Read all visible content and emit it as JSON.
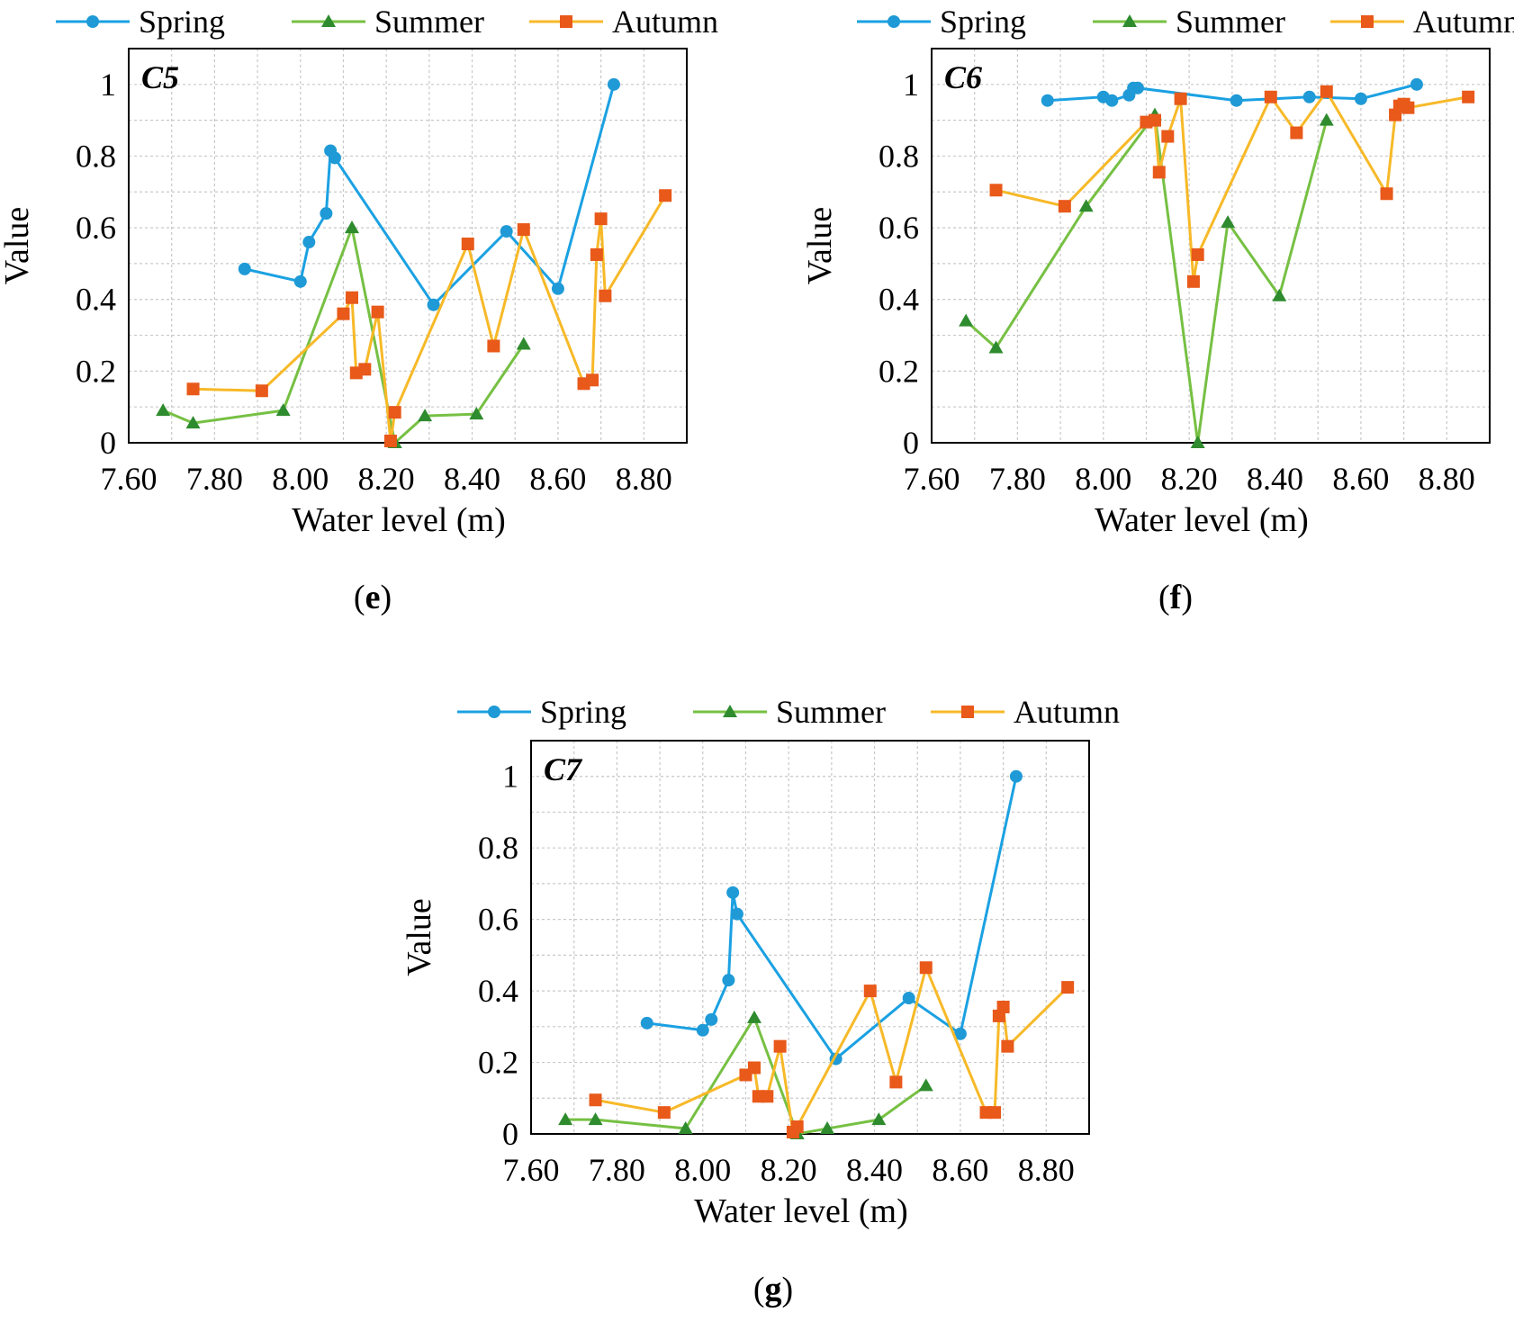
{
  "figure": {
    "legend_labels": [
      "Spring",
      "Summer",
      "Autumn"
    ],
    "colors": {
      "spring_line": "#1ba1e2",
      "spring_marker": "#1f9ad6",
      "summer_line": "#76c043",
      "summer_marker": "#2e8b2e",
      "autumn_line": "#f7b928",
      "autumn_marker": "#e8591a",
      "grid": "#c8c8c8",
      "axis": "#000000"
    },
    "icons": {
      "spring": "circle-marker-icon",
      "summer": "triangle-marker-icon",
      "autumn": "square-marker-icon"
    }
  },
  "chart_data": [
    {
      "type": "line",
      "panel_label": "e",
      "title": "C5",
      "xlabel": "Water level (m)",
      "ylabel": "Value",
      "xlim": [
        7.6,
        8.9
      ],
      "ylim": [
        0,
        1.1
      ],
      "xticks": [
        "7.60",
        "7.80",
        "8.00",
        "8.20",
        "8.40",
        "8.60",
        "8.80"
      ],
      "yticks": [
        "0",
        "0.2",
        "0.4",
        "0.6",
        "0.8",
        "1"
      ],
      "legend": "top",
      "grid": true,
      "series": [
        {
          "name": "Spring",
          "x": [
            7.87,
            8.0,
            8.02,
            8.06,
            8.07,
            8.08,
            8.31,
            8.48,
            8.6,
            8.73
          ],
          "y": [
            0.485,
            0.45,
            0.56,
            0.64,
            0.815,
            0.795,
            0.385,
            0.59,
            0.43,
            1.0
          ]
        },
        {
          "name": "Summer",
          "x": [
            7.68,
            7.75,
            7.96,
            8.12,
            8.22,
            8.29,
            8.41,
            8.52
          ],
          "y": [
            0.09,
            0.055,
            0.09,
            0.6,
            0.0,
            0.075,
            0.08,
            0.275
          ]
        },
        {
          "name": "Autumn",
          "x": [
            7.75,
            7.91,
            8.1,
            8.12,
            8.13,
            8.15,
            8.18,
            8.21,
            8.22,
            8.39,
            8.45,
            8.52,
            8.66,
            8.68,
            8.69,
            8.7,
            8.71,
            8.85
          ],
          "y": [
            0.15,
            0.145,
            0.36,
            0.405,
            0.195,
            0.205,
            0.365,
            0.005,
            0.085,
            0.555,
            0.27,
            0.595,
            0.165,
            0.175,
            0.525,
            0.625,
            0.41,
            0.69
          ]
        }
      ]
    },
    {
      "type": "line",
      "panel_label": "f",
      "title": "C6",
      "xlabel": "Water level (m)",
      "ylabel": "Value",
      "xlim": [
        7.6,
        8.9
      ],
      "ylim": [
        0,
        1.1
      ],
      "xticks": [
        "7.60",
        "7.80",
        "8.00",
        "8.20",
        "8.40",
        "8.60",
        "8.80"
      ],
      "yticks": [
        "0",
        "0.2",
        "0.4",
        "0.6",
        "0.8",
        "1"
      ],
      "legend": "top",
      "grid": true,
      "series": [
        {
          "name": "Spring",
          "x": [
            7.87,
            8.0,
            8.02,
            8.06,
            8.07,
            8.08,
            8.31,
            8.48,
            8.6,
            8.73
          ],
          "y": [
            0.955,
            0.965,
            0.955,
            0.97,
            0.99,
            0.99,
            0.955,
            0.965,
            0.96,
            1.0
          ]
        },
        {
          "name": "Summer",
          "x": [
            7.68,
            7.75,
            7.96,
            8.12,
            8.22,
            8.29,
            8.41,
            8.52
          ],
          "y": [
            0.34,
            0.265,
            0.66,
            0.915,
            0.0,
            0.615,
            0.41,
            0.9
          ]
        },
        {
          "name": "Autumn",
          "x": [
            7.75,
            7.91,
            8.1,
            8.12,
            8.13,
            8.15,
            8.18,
            8.21,
            8.22,
            8.39,
            8.45,
            8.52,
            8.66,
            8.68,
            8.69,
            8.7,
            8.71,
            8.85
          ],
          "y": [
            0.705,
            0.66,
            0.895,
            0.9,
            0.755,
            0.855,
            0.96,
            0.45,
            0.525,
            0.965,
            0.865,
            0.98,
            0.695,
            0.915,
            0.94,
            0.945,
            0.935,
            0.965
          ]
        }
      ]
    },
    {
      "type": "line",
      "panel_label": "g",
      "title": "C7",
      "xlabel": "Water level (m)",
      "ylabel": "Value",
      "xlim": [
        7.6,
        8.9
      ],
      "ylim": [
        0,
        1.1
      ],
      "xticks": [
        "7.60",
        "7.80",
        "8.00",
        "8.20",
        "8.40",
        "8.60",
        "8.80"
      ],
      "yticks": [
        "0",
        "0.2",
        "0.4",
        "0.6",
        "0.8",
        "1"
      ],
      "legend": "top",
      "grid": true,
      "series": [
        {
          "name": "Spring",
          "x": [
            7.87,
            8.0,
            8.02,
            8.06,
            8.07,
            8.08,
            8.31,
            8.48,
            8.6,
            8.73
          ],
          "y": [
            0.31,
            0.29,
            0.32,
            0.43,
            0.675,
            0.615,
            0.21,
            0.38,
            0.28,
            1.0
          ]
        },
        {
          "name": "Summer",
          "x": [
            7.68,
            7.75,
            7.96,
            8.12,
            8.22,
            8.29,
            8.41,
            8.52
          ],
          "y": [
            0.04,
            0.04,
            0.015,
            0.325,
            0.0,
            0.015,
            0.04,
            0.135
          ]
        },
        {
          "name": "Autumn",
          "x": [
            7.75,
            7.91,
            8.1,
            8.12,
            8.13,
            8.15,
            8.18,
            8.21,
            8.22,
            8.39,
            8.45,
            8.52,
            8.66,
            8.68,
            8.69,
            8.7,
            8.71,
            8.85
          ],
          "y": [
            0.095,
            0.06,
            0.165,
            0.185,
            0.105,
            0.105,
            0.245,
            0.005,
            0.02,
            0.4,
            0.145,
            0.465,
            0.06,
            0.06,
            0.33,
            0.355,
            0.245,
            0.41
          ]
        }
      ]
    }
  ]
}
